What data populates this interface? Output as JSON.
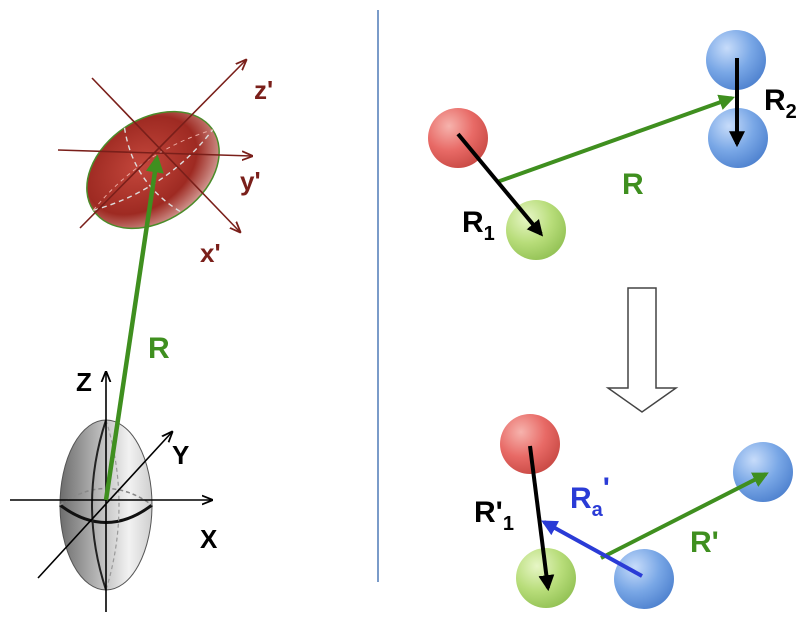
{
  "colors": {
    "divider": "#7a9bc9",
    "green": "#3f8f1f",
    "black": "#000000",
    "blue": "#2a3bd6",
    "dark_red": "#7a1f1a",
    "red_sphere": "#e86a66",
    "green_sphere": "#b8dd7a",
    "blue_sphere": "#79a7e6"
  },
  "left_panel": {
    "prime_axes": {
      "z": "z'",
      "y": "y'",
      "x": "x'"
    },
    "lab_axes": {
      "z": "Z",
      "y": "Y",
      "x": "X"
    },
    "vector_label": "R"
  },
  "right_panel": {
    "top": {
      "R1": "R",
      "R1_sub": "1",
      "R2": "R",
      "R2_sub": "2",
      "R": "R"
    },
    "bottom": {
      "R1p": "R'",
      "R1p_sub": "1",
      "Ra": "R",
      "Ra_sub": "a",
      "Ra_prime": "'",
      "Rp": "R'"
    }
  }
}
